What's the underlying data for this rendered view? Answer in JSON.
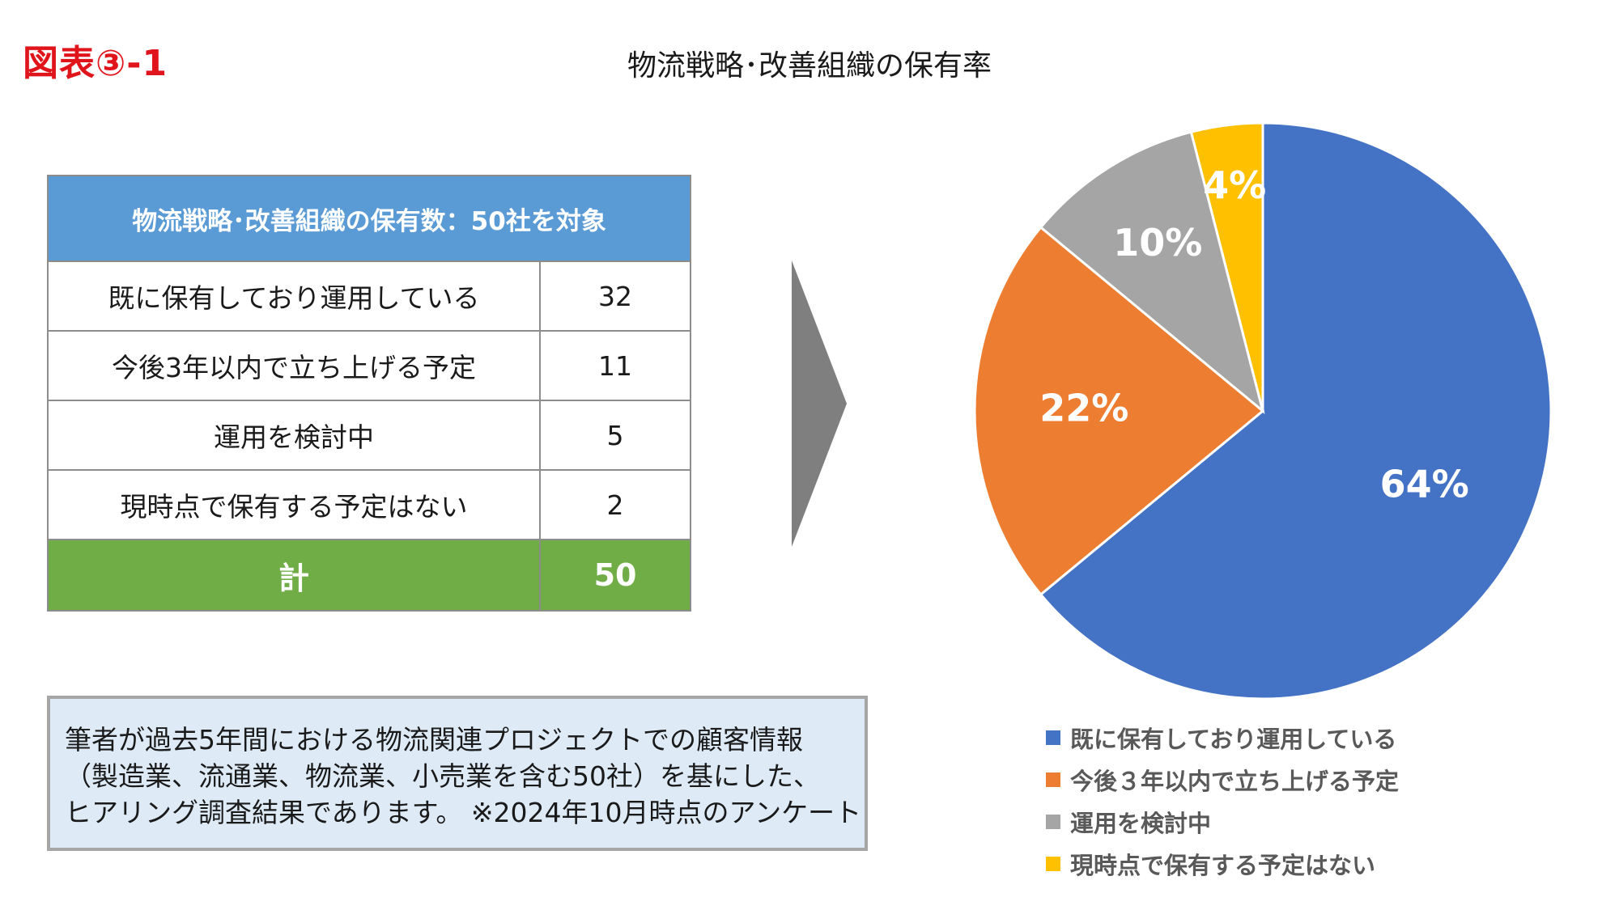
{
  "header": {
    "figure_label": "図表③-1",
    "title": "物流戦略･改善組織の保有率"
  },
  "table": {
    "header": "物流戦略･改善組織の保有数：50社を対象",
    "rows": [
      {
        "label": "既に保有しており運用している",
        "value": "32"
      },
      {
        "label": "今後3年以内で立ち上げる予定",
        "value": "11"
      },
      {
        "label": "運用を検討中",
        "value": "5"
      },
      {
        "label": "現時点で保有する予定はない",
        "value": "2"
      }
    ],
    "total_label": "計",
    "total_value": "50"
  },
  "note": {
    "lines": [
      "筆者が過去5年間における物流関連プロジェクトでの顧客情報",
      "（製造業、流通業、物流業、小売業を含む50社）を基にした、",
      "ヒアリング調査結果であります。 ※2024年10月時点のアンケート"
    ]
  },
  "colors": {
    "figure_label": "#e0151c",
    "table_header": "#5b9bd5",
    "table_total": "#70ad47",
    "note_bg": "#deebf7",
    "arrow": "#7f7f7f"
  },
  "icons": {
    "arrow": "right-chevron-arrow"
  },
  "chart_data": {
    "type": "pie",
    "title": "物流戦略･改善組織の保有率",
    "start_angle_deg": 0,
    "direction": "clockwise",
    "legend_position": "bottom",
    "slices": [
      {
        "label": "既に保有しており運用している",
        "value": 64,
        "display": "64%",
        "color": "#4472c4"
      },
      {
        "label": "今後３年以内で立ち上げる予定",
        "value": 22,
        "display": "22%",
        "color": "#ed7d31"
      },
      {
        "label": "運用を検討中",
        "value": 10,
        "display": "10%",
        "color": "#a5a5a5"
      },
      {
        "label": "現時点で保有する予定はない",
        "value": 4,
        "display": "4%",
        "color": "#ffc000"
      }
    ]
  }
}
